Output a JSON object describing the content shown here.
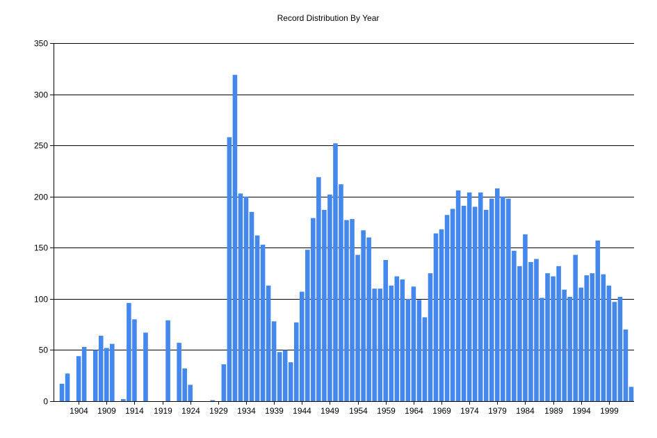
{
  "chart_data": {
    "type": "bar",
    "title": "Record Distribution By Year",
    "xlabel": "",
    "ylabel": "",
    "ylim": [
      0,
      350
    ],
    "yticks": [
      0,
      50,
      100,
      150,
      200,
      250,
      300,
      350
    ],
    "xlim": [
      1900,
      2003
    ],
    "xticks": [
      1904,
      1909,
      1914,
      1919,
      1924,
      1929,
      1934,
      1939,
      1944,
      1949,
      1954,
      1959,
      1964,
      1969,
      1974,
      1979,
      1984,
      1989,
      1994,
      1999
    ],
    "grid": true,
    "legend": "none",
    "bar_color": "#4488ee",
    "x": [
      1901,
      1902,
      1904,
      1905,
      1907,
      1908,
      1909,
      1910,
      1912,
      1913,
      1914,
      1916,
      1920,
      1922,
      1923,
      1924,
      1928,
      1930,
      1931,
      1932,
      1933,
      1934,
      1935,
      1936,
      1937,
      1938,
      1939,
      1940,
      1941,
      1942,
      1943,
      1944,
      1945,
      1946,
      1947,
      1948,
      1949,
      1950,
      1951,
      1952,
      1953,
      1954,
      1955,
      1956,
      1957,
      1958,
      1959,
      1960,
      1961,
      1962,
      1963,
      1964,
      1965,
      1966,
      1967,
      1968,
      1969,
      1970,
      1971,
      1972,
      1973,
      1974,
      1975,
      1976,
      1977,
      1978,
      1979,
      1980,
      1981,
      1982,
      1983,
      1984,
      1985,
      1986,
      1987,
      1988,
      1989,
      1990,
      1991,
      1992,
      1993,
      1994,
      1995,
      1996,
      1997,
      1998,
      1999,
      2000,
      2001,
      2002,
      2003
    ],
    "values": [
      17,
      27,
      44,
      53,
      50,
      64,
      52,
      56,
      2,
      96,
      80,
      67,
      79,
      57,
      32,
      16,
      1,
      36,
      258,
      319,
      203,
      200,
      185,
      162,
      153,
      113,
      78,
      48,
      50,
      38,
      77,
      107,
      148,
      179,
      219,
      187,
      202,
      252,
      212,
      177,
      178,
      143,
      167,
      160,
      110,
      110,
      138,
      113,
      122,
      119,
      100,
      112,
      99,
      82,
      125,
      164,
      168,
      182,
      188,
      206,
      191,
      204,
      190,
      204,
      187,
      198,
      208,
      200,
      198,
      147,
      132,
      163,
      136,
      139,
      101,
      125,
      122,
      132,
      109,
      102,
      143,
      111,
      123,
      125,
      157,
      124,
      113,
      97,
      102,
      70,
      14
    ]
  }
}
